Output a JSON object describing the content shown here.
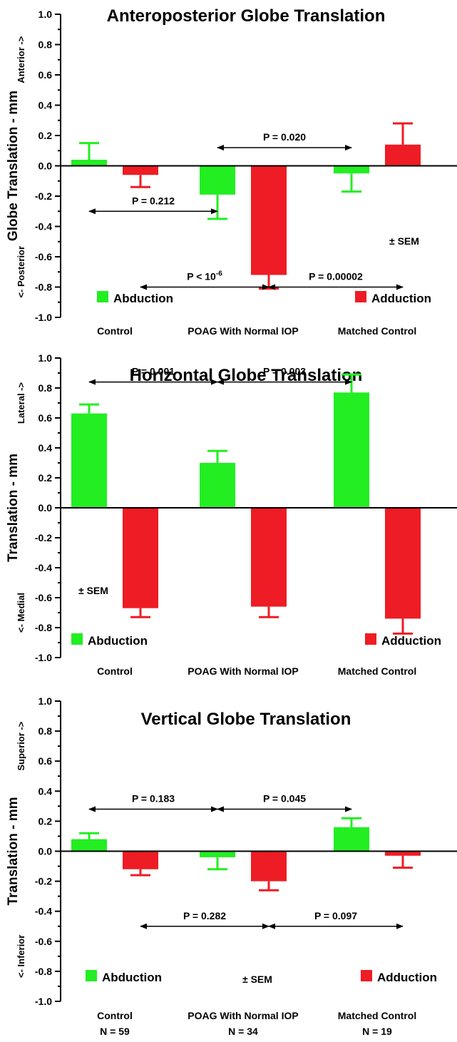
{
  "colors": {
    "abduction": "#22ee22",
    "adduction": "#ee1c24",
    "axis": "#000000"
  },
  "chart_data": [
    {
      "type": "bar",
      "title": "Anteroposterior Globe Translation",
      "ylabel": "Globe Translation - mm",
      "ypos_label": "Anterior ->",
      "yneg_label": "<- Posterior",
      "ylim": [
        -1.0,
        1.0
      ],
      "ytick_step": 0.2,
      "yticks": [
        "1.0",
        "0.8",
        "0.6",
        "0.4",
        "0.2",
        "0.0",
        "-0.2",
        "-0.4",
        "-0.6",
        "-0.8",
        "-1.0"
      ],
      "categories": [
        "Control",
        "POAG With Normal IOP",
        "Matched Control"
      ],
      "n_labels": [],
      "error_bars": "± SEM",
      "sem_label": "± SEM",
      "legend_placement": "bottom",
      "series": [
        {
          "name": "Abduction",
          "color_key": "abduction",
          "values": [
            0.04,
            -0.19,
            -0.05
          ],
          "sem": [
            0.11,
            0.16,
            0.12
          ]
        },
        {
          "name": "Adduction",
          "color_key": "adduction",
          "values": [
            -0.06,
            -0.72,
            0.14
          ],
          "sem": [
            0.08,
            0.09,
            0.14
          ]
        }
      ],
      "comparisons": [
        {
          "label": "P  = 0.212",
          "from": [
            0,
            0
          ],
          "to": [
            1,
            0
          ],
          "y": -0.3
        },
        {
          "label": "P  = 0.020",
          "from": [
            1,
            0
          ],
          "to": [
            2,
            0
          ],
          "y": 0.12
        },
        {
          "label": "P < 10-6",
          "sup": "-6",
          "base": "P < 10",
          "from": [
            0,
            1
          ],
          "to": [
            1,
            1
          ],
          "y": -0.8
        },
        {
          "label": "P  = 0.00002",
          "from": [
            1,
            1
          ],
          "to": [
            2,
            1
          ],
          "y": -0.8
        }
      ]
    },
    {
      "type": "bar",
      "title": "Horizontal Globe Translation",
      "ylabel": "Translation - mm",
      "ypos_label": "Lateral ->",
      "yneg_label": "<- Medial",
      "ylim": [
        -1.0,
        1.0
      ],
      "ytick_step": 0.2,
      "yticks": [
        "1.0",
        "0.8",
        "0.6",
        "0.4",
        "0.2",
        "0.0",
        "-0.2",
        "-0.4",
        "-0.6",
        "-0.8",
        "-1.0"
      ],
      "categories": [
        "Control",
        "POAG With Normal IOP",
        "Matched Control"
      ],
      "n_labels": [],
      "error_bars": "± SEM",
      "sem_label": "± SEM",
      "legend_placement": "bottom",
      "series": [
        {
          "name": "Abduction",
          "color_key": "abduction",
          "values": [
            0.63,
            0.3,
            0.77
          ],
          "sem": [
            0.06,
            0.08,
            0.12
          ]
        },
        {
          "name": "Adduction",
          "color_key": "adduction",
          "values": [
            -0.67,
            -0.66,
            -0.74
          ],
          "sem": [
            0.06,
            0.07,
            0.1
          ]
        }
      ],
      "comparisons": [
        {
          "label": "P = 0.001",
          "from": [
            0,
            0
          ],
          "to": [
            1,
            0
          ],
          "y": 0.84
        },
        {
          "label": "P = 0.003",
          "from": [
            1,
            0
          ],
          "to": [
            2,
            0
          ],
          "y": 0.84
        }
      ]
    },
    {
      "type": "bar",
      "title": "Vertical Globe Translation",
      "ylabel": "Translation - mm",
      "ypos_label": "Superior ->",
      "yneg_label": "<- Inferior",
      "ylim": [
        -1.0,
        1.0
      ],
      "ytick_step": 0.2,
      "yticks": [
        "1.0",
        "0.8",
        "0.6",
        "0.4",
        "0.2",
        "0.0",
        "-0.2",
        "-0.4",
        "-0.6",
        "-0.8",
        "-1.0"
      ],
      "categories": [
        "Control",
        "POAG With Normal IOP",
        "Matched Control"
      ],
      "n_labels": [
        "N = 59",
        "N = 34",
        "N = 19"
      ],
      "error_bars": "± SEM",
      "sem_label": "± SEM",
      "legend_placement": "bottom",
      "series": [
        {
          "name": "Abduction",
          "color_key": "abduction",
          "values": [
            0.08,
            -0.04,
            0.16
          ],
          "sem": [
            0.04,
            0.08,
            0.06
          ]
        },
        {
          "name": "Adduction",
          "color_key": "adduction",
          "values": [
            -0.12,
            -0.2,
            -0.03
          ],
          "sem": [
            0.04,
            0.06,
            0.08
          ]
        }
      ],
      "comparisons": [
        {
          "label": "P  = 0.183",
          "from": [
            0,
            0
          ],
          "to": [
            1,
            0
          ],
          "y": 0.28
        },
        {
          "label": "P  = 0.045",
          "from": [
            1,
            0
          ],
          "to": [
            2,
            0
          ],
          "y": 0.28
        },
        {
          "label": "P  = 0.282",
          "from": [
            0,
            1
          ],
          "to": [
            1,
            1
          ],
          "y": -0.5
        },
        {
          "label": "P  = 0.097",
          "from": [
            1,
            1
          ],
          "to": [
            2,
            1
          ],
          "y": -0.5
        }
      ]
    }
  ]
}
